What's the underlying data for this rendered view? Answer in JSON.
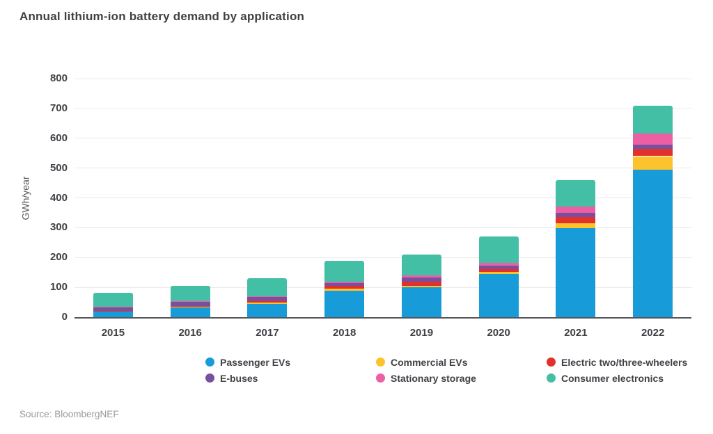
{
  "title": "Annual lithium-ion battery demand by application",
  "source": "Source: BloombergNEF",
  "chart_data": {
    "type": "bar",
    "stacked": true,
    "title": "Annual lithium-ion battery demand by application",
    "categories": [
      "2015",
      "2016",
      "2017",
      "2018",
      "2019",
      "2020",
      "2021",
      "2022"
    ],
    "series": [
      {
        "name": "Passenger EVs",
        "color": "#189cd9",
        "values": [
          20,
          33,
          44,
          88,
          100,
          145,
          298,
          495
        ]
      },
      {
        "name": "Commercial EVs",
        "color": "#fdc32d",
        "values": [
          1,
          3,
          5,
          7,
          6,
          7,
          18,
          45
        ]
      },
      {
        "name": "Electric two/three-wheelers",
        "color": "#e0312a",
        "values": [
          1,
          2,
          5,
          9,
          13,
          9,
          19,
          25
        ]
      },
      {
        "name": "E-buses",
        "color": "#7a4f9e",
        "values": [
          13,
          14,
          15,
          10,
          13,
          12,
          14,
          13
        ]
      },
      {
        "name": "Stationary storage",
        "color": "#ec5fa5",
        "values": [
          1,
          1,
          2,
          6,
          8,
          9,
          23,
          37
        ]
      },
      {
        "name": "Consumer electronics",
        "color": "#43bfa5",
        "values": [
          45,
          53,
          60,
          70,
          70,
          88,
          88,
          95
        ]
      }
    ],
    "totals": [
      81,
      106,
      131,
      190,
      210,
      270,
      460,
      710
    ],
    "xlabel": "",
    "ylabel": "GWh/year",
    "ylim": [
      0,
      800
    ],
    "yticks": [
      0,
      100,
      200,
      300,
      400,
      500,
      600,
      700,
      800
    ],
    "grid": true,
    "legend_position": "bottom",
    "axis_color": "#56575b",
    "grid_color": "#eaeaea",
    "text_color": "#414046"
  }
}
